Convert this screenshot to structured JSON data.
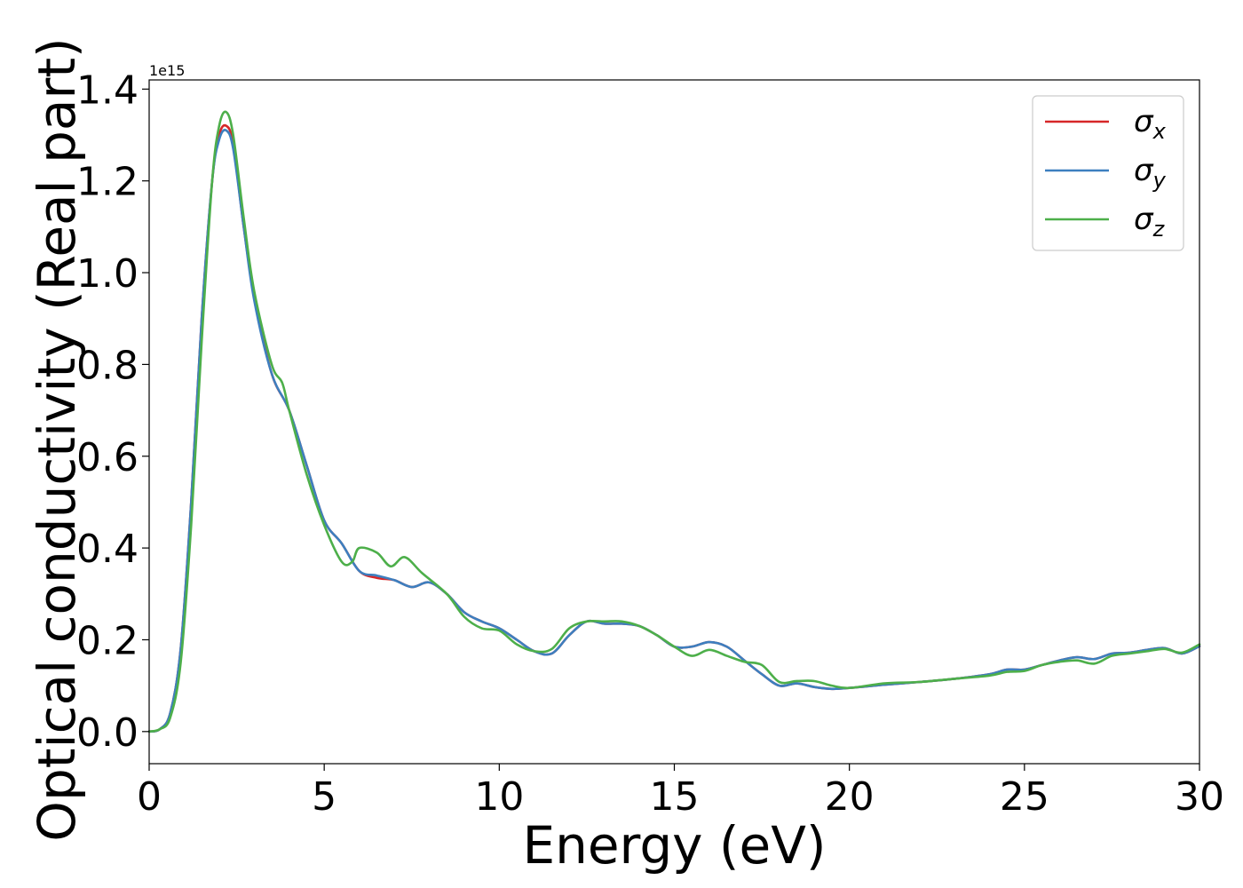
{
  "chart_data": {
    "type": "line",
    "title": "",
    "xlabel": "Energy (eV)",
    "ylabel": "Optical conductivity (Real part)",
    "y_offset_text": "1e15",
    "xlim": [
      0,
      30
    ],
    "ylim": [
      -0.07,
      1.42
    ],
    "x_ticks": [
      0,
      5,
      10,
      15,
      20,
      25,
      30
    ],
    "x_tick_labels": [
      "0",
      "5",
      "10",
      "15",
      "20",
      "25",
      "30"
    ],
    "y_ticks": [
      0.0,
      0.2,
      0.4,
      0.6,
      0.8,
      1.0,
      1.2,
      1.4
    ],
    "y_tick_labels": [
      "0.0",
      "0.2",
      "0.4",
      "0.6",
      "0.8",
      "1.0",
      "1.2",
      "1.4"
    ],
    "grid": false,
    "legend_position": "top-right",
    "series": [
      {
        "name": "σx",
        "legend_base": "σ",
        "legend_sub": "x",
        "color": "#d62728",
        "x": [
          0,
          0.3,
          0.6,
          0.9,
          1.2,
          1.5,
          1.8,
          2.0,
          2.2,
          2.4,
          2.7,
          3.0,
          3.5,
          4.0,
          4.5,
          5.0,
          5.5,
          6.0,
          6.5,
          7.0,
          7.5,
          8.0,
          8.5,
          9.0,
          9.5,
          10.0,
          10.5,
          11.0,
          11.5,
          12.0,
          12.5,
          13.0,
          13.5,
          14.0,
          14.5,
          15.0,
          15.5,
          16.0,
          16.5,
          17.0,
          17.5,
          18.0,
          18.5,
          19.0,
          19.5,
          20.0,
          21.0,
          22.0,
          23.0,
          24.0,
          24.5,
          25.0,
          25.5,
          26.0,
          26.5,
          27.0,
          27.5,
          28.0,
          28.5,
          29.0,
          29.5,
          30.0
        ],
        "y": [
          0.0,
          0.005,
          0.04,
          0.18,
          0.5,
          0.9,
          1.2,
          1.3,
          1.32,
          1.28,
          1.1,
          0.95,
          0.78,
          0.7,
          0.58,
          0.46,
          0.41,
          0.35,
          0.335,
          0.33,
          0.315,
          0.325,
          0.3,
          0.26,
          0.24,
          0.225,
          0.2,
          0.175,
          0.17,
          0.21,
          0.24,
          0.235,
          0.235,
          0.23,
          0.21,
          0.185,
          0.185,
          0.195,
          0.185,
          0.155,
          0.125,
          0.1,
          0.105,
          0.097,
          0.093,
          0.095,
          0.102,
          0.108,
          0.115,
          0.125,
          0.135,
          0.135,
          0.145,
          0.155,
          0.162,
          0.158,
          0.17,
          0.172,
          0.178,
          0.182,
          0.17,
          0.186
        ]
      },
      {
        "name": "σy",
        "legend_base": "σ",
        "legend_sub": "y",
        "color": "#3d7fbf",
        "x": [
          0,
          0.3,
          0.6,
          0.9,
          1.2,
          1.5,
          1.8,
          2.0,
          2.2,
          2.4,
          2.7,
          3.0,
          3.5,
          4.0,
          4.5,
          5.0,
          5.5,
          6.0,
          6.5,
          7.0,
          7.5,
          8.0,
          8.5,
          9.0,
          9.5,
          10.0,
          10.5,
          11.0,
          11.5,
          12.0,
          12.5,
          13.0,
          13.5,
          14.0,
          14.5,
          15.0,
          15.5,
          16.0,
          16.5,
          17.0,
          17.5,
          18.0,
          18.5,
          19.0,
          19.5,
          20.0,
          21.0,
          22.0,
          23.0,
          24.0,
          24.5,
          25.0,
          25.5,
          26.0,
          26.5,
          27.0,
          27.5,
          28.0,
          28.5,
          29.0,
          29.5,
          30.0
        ],
        "y": [
          0.0,
          0.005,
          0.04,
          0.18,
          0.5,
          0.9,
          1.2,
          1.29,
          1.31,
          1.27,
          1.1,
          0.94,
          0.78,
          0.7,
          0.58,
          0.46,
          0.41,
          0.35,
          0.34,
          0.33,
          0.315,
          0.325,
          0.3,
          0.26,
          0.24,
          0.225,
          0.2,
          0.175,
          0.17,
          0.21,
          0.24,
          0.235,
          0.235,
          0.23,
          0.21,
          0.185,
          0.185,
          0.195,
          0.185,
          0.155,
          0.125,
          0.1,
          0.105,
          0.097,
          0.093,
          0.095,
          0.102,
          0.108,
          0.115,
          0.125,
          0.135,
          0.135,
          0.145,
          0.155,
          0.162,
          0.158,
          0.17,
          0.172,
          0.178,
          0.182,
          0.17,
          0.186
        ]
      },
      {
        "name": "σz",
        "legend_base": "σ",
        "legend_sub": "z",
        "color": "#4daf4a",
        "x": [
          0,
          0.3,
          0.6,
          0.9,
          1.2,
          1.5,
          1.8,
          2.0,
          2.2,
          2.4,
          2.7,
          3.0,
          3.5,
          3.8,
          4.0,
          4.5,
          5.0,
          5.5,
          5.8,
          6.0,
          6.5,
          6.9,
          7.3,
          7.8,
          8.5,
          9.0,
          9.5,
          10.0,
          10.5,
          11.0,
          11.5,
          12.0,
          12.5,
          13.0,
          13.5,
          14.0,
          14.5,
          15.0,
          15.5,
          16.0,
          16.5,
          17.0,
          17.5,
          18.0,
          18.5,
          19.0,
          19.5,
          20.0,
          21.0,
          22.0,
          23.0,
          24.0,
          24.5,
          25.0,
          25.5,
          26.0,
          26.5,
          27.0,
          27.5,
          28.0,
          28.5,
          29.0,
          29.5,
          30.0
        ],
        "y": [
          0.0,
          0.005,
          0.03,
          0.15,
          0.45,
          0.85,
          1.2,
          1.32,
          1.35,
          1.3,
          1.12,
          0.96,
          0.8,
          0.76,
          0.7,
          0.56,
          0.45,
          0.37,
          0.37,
          0.4,
          0.39,
          0.36,
          0.38,
          0.345,
          0.3,
          0.25,
          0.225,
          0.22,
          0.19,
          0.175,
          0.18,
          0.225,
          0.24,
          0.24,
          0.24,
          0.23,
          0.21,
          0.185,
          0.165,
          0.178,
          0.165,
          0.152,
          0.145,
          0.108,
          0.11,
          0.11,
          0.1,
          0.095,
          0.105,
          0.108,
          0.115,
          0.122,
          0.13,
          0.132,
          0.145,
          0.152,
          0.155,
          0.148,
          0.165,
          0.17,
          0.175,
          0.18,
          0.172,
          0.19
        ]
      }
    ]
  }
}
